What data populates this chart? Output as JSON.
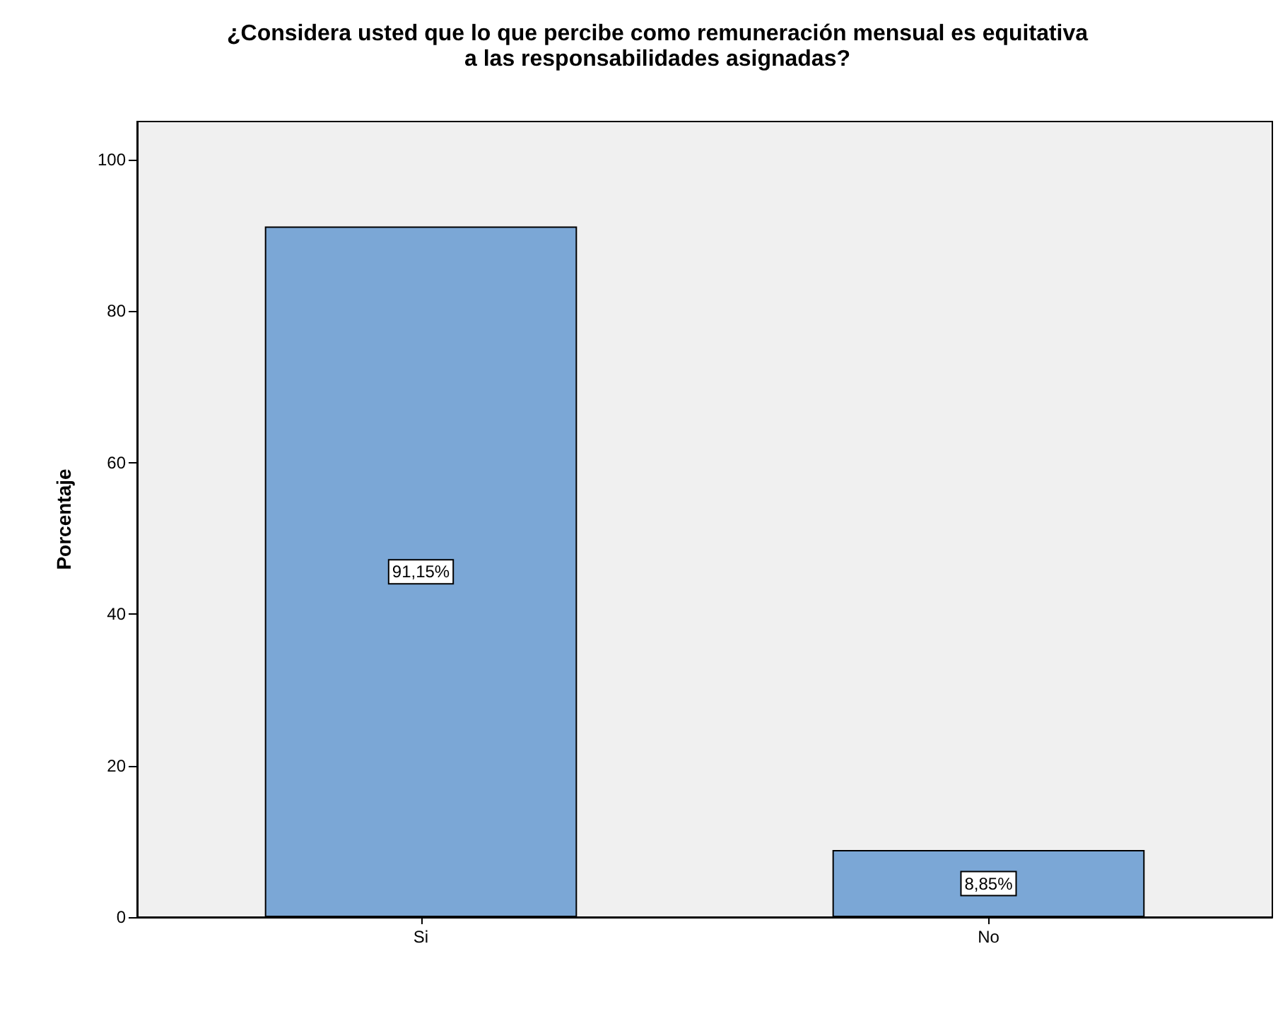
{
  "chart_data": {
    "type": "bar",
    "title": "¿Considera usted que lo que percibe como remuneración mensual es equitativa\na las responsabilidades asignadas?",
    "ylabel": "Porcentaje",
    "categories": [
      "Si",
      "No"
    ],
    "values": [
      91.15,
      8.85
    ],
    "color": "#7ba7d6",
    "value_labels": [
      "91,15%",
      "8,85%"
    ],
    "ylim": [
      0,
      105
    ],
    "yticks": [
      0,
      20,
      40,
      60,
      80,
      100
    ]
  }
}
